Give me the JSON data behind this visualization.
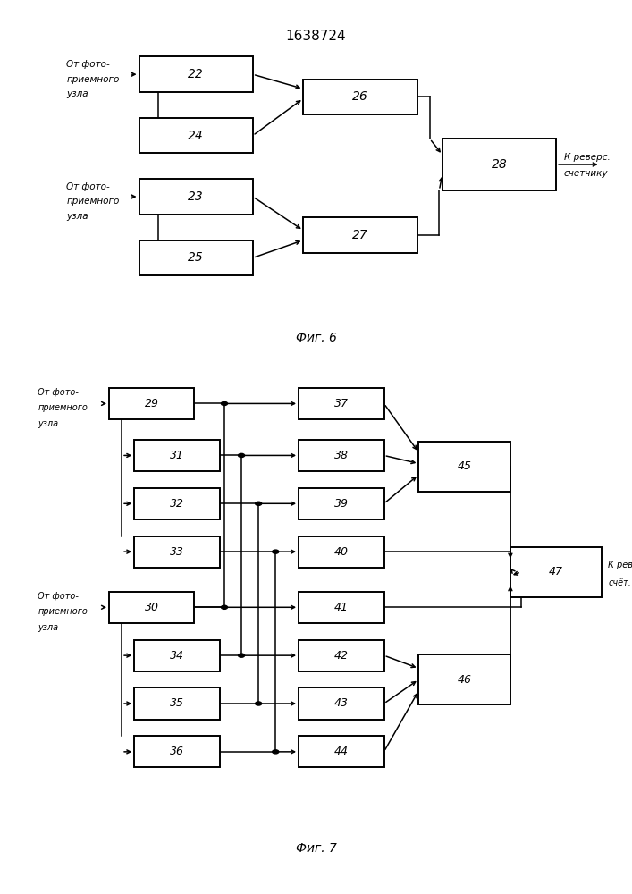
{
  "title": "1638724",
  "fig6_label": "Фиг. 6",
  "fig7_label": "Фиг. 7",
  "lbl_from1": [
    "От фото-",
    "приемного",
    "узла"
  ],
  "lbl_from2": [
    "От фото-",
    "приемного",
    "узла"
  ],
  "lbl_out6a": "К реверс.",
  "lbl_out6b": "счетчику",
  "lbl_from3": [
    "От фото-",
    "приемного",
    "узла"
  ],
  "lbl_from4": [
    "От фото-",
    "приемного",
    "узла"
  ],
  "lbl_out7a": "К реверс.",
  "lbl_out7b": "счёт."
}
